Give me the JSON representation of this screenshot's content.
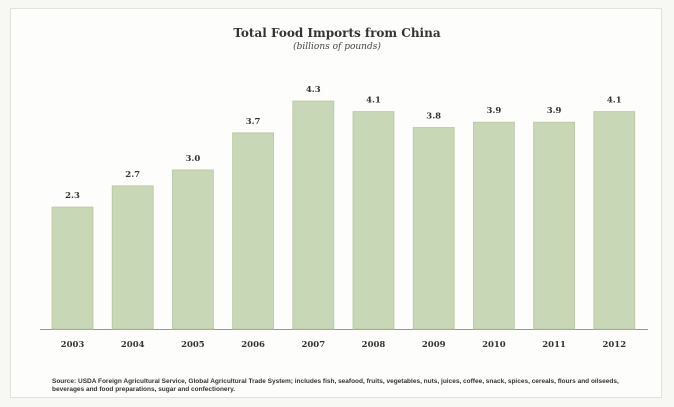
{
  "chart_data": {
    "type": "bar",
    "title": "Total Food Imports from China",
    "subtitle": "(billions of pounds)",
    "categories": [
      "2003",
      "2004",
      "2005",
      "2006",
      "2007",
      "2008",
      "2009",
      "2010",
      "2011",
      "2012"
    ],
    "values": [
      2.3,
      2.7,
      3.0,
      3.7,
      4.3,
      4.1,
      3.8,
      3.9,
      3.9,
      4.1
    ],
    "value_labels": [
      "2.3",
      "2.7",
      "3.0",
      "3.7",
      "4.3",
      "4.1",
      "3.8",
      "3.9",
      "3.9",
      "4.1"
    ],
    "xlabel": "",
    "ylabel": "",
    "ylim": [
      0,
      4.3
    ],
    "grid": false,
    "bar_color": "#c8d7b5",
    "bar_edge_color": "#b7c8a2",
    "source": "Source: USDA Foreign Agricultural Service, Global Agricultural Trade System; includes fish, seafood, fruits, vegetables, nuts, juices, coffee, snack, spices, cereals, flours and oilseeds, beverages and food preparations, sugar and confectionery."
  }
}
